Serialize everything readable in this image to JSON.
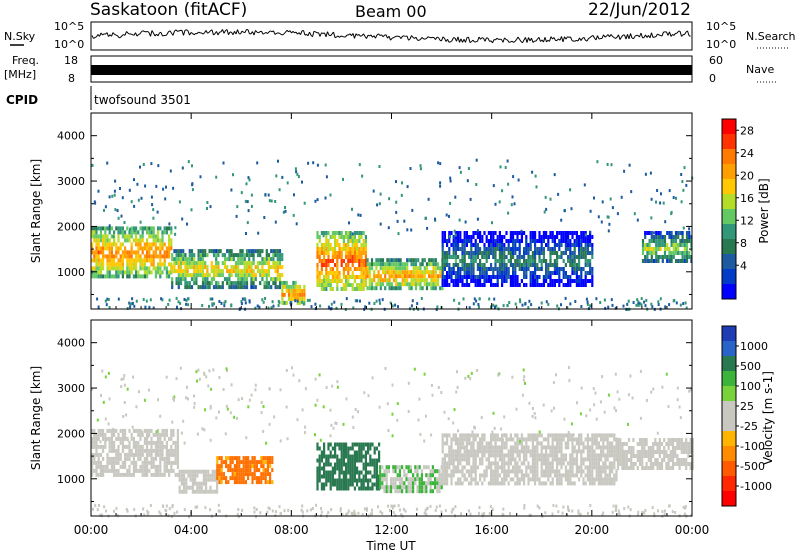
{
  "header": {
    "station": "Saskatoon (fitACF)",
    "beam": "Beam 00",
    "date": "22/Jun/2012"
  },
  "aux": {
    "nsky_label": "N.Sky",
    "nsearch_label": "N.Search",
    "freq_label_line1": "Freq.",
    "freq_label_line2": "[MHz]",
    "nave_label": "Nave",
    "cpid_label": "CPID",
    "cpid_value": "twofsound 3501",
    "noise_ticks_left": [
      "10^5",
      "10^0"
    ],
    "noise_ticks_right": [
      "10^5",
      "10^0"
    ],
    "freq_ticks": [
      "18",
      "8"
    ],
    "nave_ticks": [
      "60",
      "0"
    ]
  },
  "colors": {
    "scatter_grey": "#c8c8c0",
    "axis": "#000000"
  },
  "chart_data": [
    {
      "type": "heatmap",
      "title": "Power",
      "xlabel": "",
      "ylabel": "Slant Range [km]",
      "ylim": [
        180,
        4500
      ],
      "yticks": [
        "4000",
        "3000",
        "2000",
        "1000"
      ],
      "yticks_values": [
        4000,
        3000,
        2000,
        1000
      ],
      "xlim": [
        0,
        24
      ],
      "colorbar": {
        "label": "Power [dB]",
        "ticks": [
          "28",
          "24",
          "20",
          "16",
          "12",
          "8",
          "4"
        ],
        "colors": [
          "#ff0000",
          "#ff3300",
          "#ff7a00",
          "#ffa000",
          "#ffc800",
          "#b4dc28",
          "#64c864",
          "#329678",
          "#287850",
          "#1e5aa0",
          "#003cc8",
          "#0000ff"
        ]
      },
      "ionospheric_echo_bands": [
        {
          "t_start": 0,
          "t_end": 3.2,
          "range_min": 900,
          "range_max": 2000,
          "power_db": 24
        },
        {
          "t_start": 3.2,
          "t_end": 7.6,
          "range_min": 700,
          "range_max": 1500,
          "power_db": 20
        },
        {
          "t_start": 7.6,
          "t_end": 8.5,
          "range_min": 300,
          "range_max": 800,
          "power_db": 24
        },
        {
          "t_start": 9.0,
          "t_end": 11.0,
          "range_min": 600,
          "range_max": 1900,
          "power_db": 26
        },
        {
          "t_start": 11.0,
          "t_end": 14.0,
          "range_min": 600,
          "range_max": 1300,
          "power_db": 22
        },
        {
          "t_start": 14.0,
          "t_end": 20.0,
          "range_min": 700,
          "range_max": 1900,
          "power_db": 10
        },
        {
          "t_start": 22.0,
          "t_end": 24.0,
          "range_min": 1200,
          "range_max": 1900,
          "power_db": 16
        }
      ]
    },
    {
      "type": "heatmap",
      "title": "Velocity",
      "xlabel": "Time UT",
      "ylabel": "Slant Range [km]",
      "ylim": [
        180,
        4500
      ],
      "yticks": [
        "4000",
        "3000",
        "2000",
        "1000"
      ],
      "yticks_values": [
        4000,
        3000,
        2000,
        1000
      ],
      "xlim": [
        0,
        24
      ],
      "xticks": [
        "00:00",
        "04:00",
        "08:00",
        "12:00",
        "16:00",
        "20:00",
        "00:00"
      ],
      "xticks_values": [
        0,
        4,
        8,
        12,
        16,
        20,
        24
      ],
      "colorbar": {
        "label": "Velocity [m s-1]",
        "ticks": [
          "1000",
          "500",
          "100",
          "25",
          "-25",
          "-100",
          "-500",
          "-1000"
        ],
        "colors": [
          "#1e3cb4",
          "#2864c8",
          "#287850",
          "#3cb43c",
          "#78d23c",
          "#c8c8c0",
          "#c8c8c0",
          "#ffb400",
          "#ff8c00",
          "#ff5a00",
          "#ff2800",
          "#ff0000"
        ]
      },
      "ionospheric_echo_bands": [
        {
          "t_start": 0,
          "t_end": 3.5,
          "range_min": 1100,
          "range_max": 2100,
          "velocity": 0
        },
        {
          "t_start": 3.5,
          "t_end": 5.0,
          "range_min": 700,
          "range_max": 1200,
          "velocity": 0
        },
        {
          "t_start": 5.0,
          "t_end": 7.2,
          "range_min": 900,
          "range_max": 1500,
          "velocity": -200
        },
        {
          "t_start": 9.0,
          "t_end": 11.5,
          "range_min": 800,
          "range_max": 1800,
          "velocity": 300
        },
        {
          "t_start": 11.5,
          "t_end": 14.0,
          "range_min": 700,
          "range_max": 1300,
          "velocity": 60
        },
        {
          "t_start": 14.0,
          "t_end": 21.0,
          "range_min": 900,
          "range_max": 2000,
          "velocity": 0
        },
        {
          "t_start": 21.0,
          "t_end": 24.0,
          "range_min": 1200,
          "range_max": 1900,
          "velocity": 0
        }
      ]
    }
  ]
}
